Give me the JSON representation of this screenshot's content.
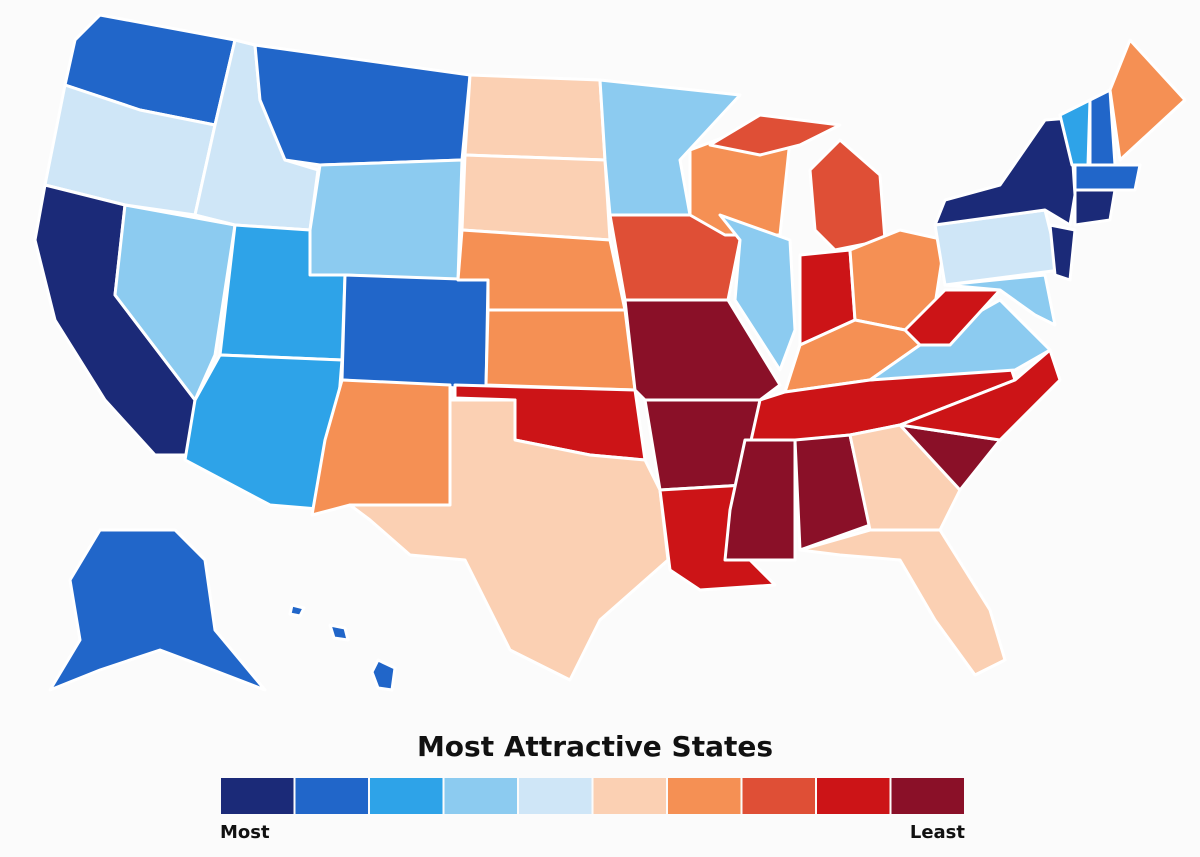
{
  "map": {
    "title": "Most Attractive States",
    "legend": {
      "low_label": "Most",
      "high_label": "Least",
      "colors": [
        "#1b2a78",
        "#2166c9",
        "#2ea3e8",
        "#8ccbf0",
        "#cfe6f7",
        "#fbd0b3",
        "#f59054",
        "#df4f36",
        "#cc1417",
        "#8a1028"
      ]
    },
    "classes": [
      1,
      4,
      0,
      3,
      4,
      1,
      3,
      2,
      2,
      1,
      6,
      5,
      5,
      6,
      6,
      8,
      5,
      3,
      7,
      9,
      9,
      8,
      6,
      3,
      7,
      7,
      8,
      6,
      6,
      8,
      9,
      9,
      5,
      5,
      9,
      8,
      3,
      8,
      3,
      4,
      0,
      0,
      2,
      1,
      1,
      0,
      6,
      1,
      1,
      1,
      1
    ]
  }
}
